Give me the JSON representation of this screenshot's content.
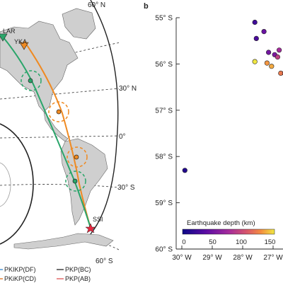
{
  "left_panel": {
    "lat_labels": [
      "60° N",
      "30° N",
      "0°",
      "30° S",
      "60° S"
    ],
    "stations": [
      "LAR",
      "YKA"
    ],
    "source_label": "SSI",
    "legend": [
      {
        "label": "PKIKP(DF)",
        "color": "#3f8fd2"
      },
      {
        "label": "PKiKP(CD)",
        "color": "#e07b2a"
      },
      {
        "label": "PKP(BC)",
        "color": "#333333"
      },
      {
        "label": "PKP(AB)",
        "color": "#e06060"
      }
    ],
    "path_colors": {
      "green": "#2aa56a",
      "orange": "#ef8a22",
      "station": "#2aa56a",
      "star": "#e8273f"
    }
  },
  "chart_data": {
    "type": "scatter",
    "panel_label": "b",
    "title": "",
    "xlabel": "",
    "ylabel": "",
    "x_ticks": [
      "30° W",
      "29° W",
      "28° W",
      "27° W"
    ],
    "y_ticks": [
      "55° S",
      "56° S",
      "57° S",
      "58° S",
      "59° S",
      "60° S"
    ],
    "xlim": [
      -30,
      -26.2
    ],
    "ylim": [
      -60,
      -55
    ],
    "colorbar": {
      "label": "Earthquake depth (km)",
      "ticks": [
        "0",
        "50",
        "100",
        "150"
      ],
      "range": [
        0,
        150
      ]
    },
    "points": [
      {
        "lon": -29.9,
        "lat": -58.3,
        "depth": 10
      },
      {
        "lon": -27.6,
        "lat": -55.1,
        "depth": 25
      },
      {
        "lon": -27.55,
        "lat": -55.45,
        "depth": 30
      },
      {
        "lon": -27.3,
        "lat": -55.3,
        "depth": 45
      },
      {
        "lon": -27.15,
        "lat": -55.75,
        "depth": 50
      },
      {
        "lon": -26.95,
        "lat": -55.8,
        "depth": 55
      },
      {
        "lon": -26.8,
        "lat": -55.7,
        "depth": 75
      },
      {
        "lon": -26.85,
        "lat": -55.85,
        "depth": 90
      },
      {
        "lon": -26.75,
        "lat": -56.2,
        "depth": 120
      },
      {
        "lon": -26.62,
        "lat": -56.2,
        "depth": 110
      },
      {
        "lon": -26.45,
        "lat": -56.2,
        "depth": 100
      },
      {
        "lon": -26.35,
        "lat": -56.15,
        "depth": 95
      },
      {
        "lon": -26.42,
        "lat": -56.3,
        "depth": 105
      },
      {
        "lon": -26.3,
        "lat": -56.25,
        "depth": 115
      },
      {
        "lon": -26.25,
        "lat": -55.15,
        "depth": 80
      },
      {
        "lon": -26.3,
        "lat": -55.75,
        "depth": 85
      },
      {
        "lon": -26.55,
        "lat": -55.85,
        "depth": 90
      },
      {
        "lon": -26.25,
        "lat": -55.95,
        "depth": 70
      },
      {
        "lon": -27.6,
        "lat": -55.95,
        "depth": 155
      },
      {
        "lon": -27.2,
        "lat": -55.98,
        "depth": 130
      },
      {
        "lon": -27.05,
        "lat": -56.05,
        "depth": 135
      }
    ]
  }
}
